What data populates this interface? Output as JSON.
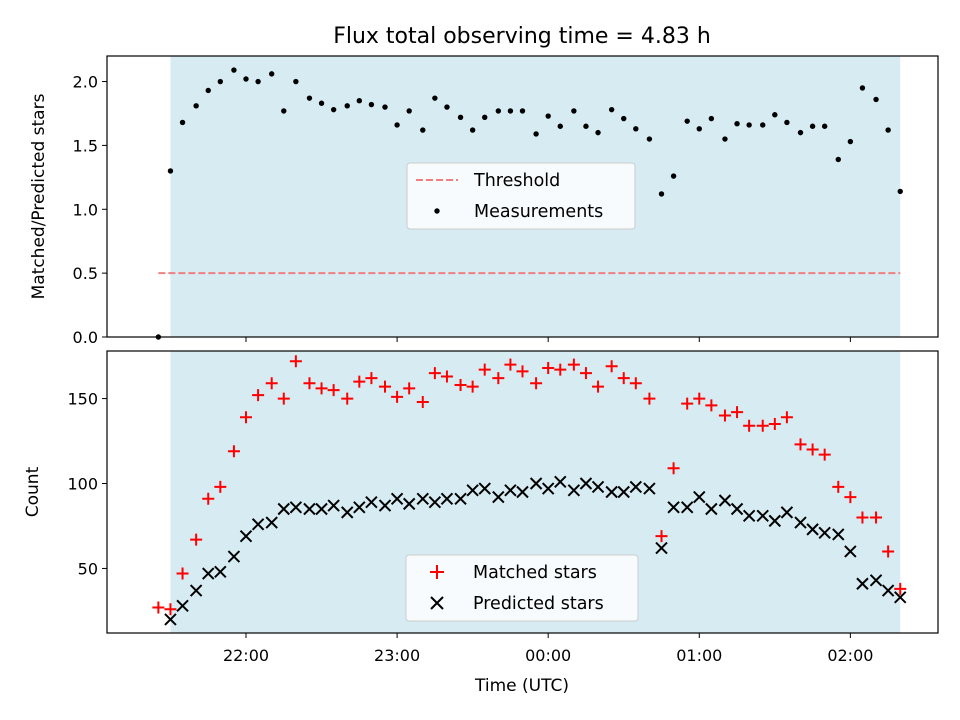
{
  "figure": {
    "title": "Flux total observing time = 4.83 h",
    "xlabel": "Time (UTC)",
    "x_tick_labels": [
      "22:00",
      "23:00",
      "00:00",
      "01:00",
      "02:00"
    ],
    "x_ticks": [
      22.0,
      23.0,
      24.0,
      25.0,
      26.0
    ],
    "xlim": [
      21.08,
      26.58
    ],
    "shaded_interval": [
      21.5,
      26.33
    ],
    "shade_color": "#add8e6"
  },
  "chart_data": [
    {
      "type": "scatter",
      "panel": "top",
      "ylabel": "Matched/Predicted stars",
      "ylim": [
        0.0,
        2.2
      ],
      "y_ticks": [
        0.0,
        0.5,
        1.0,
        1.5,
        2.0
      ],
      "y_tick_labels": [
        "0.0",
        "0.5",
        "1.0",
        "1.5",
        "2.0"
      ],
      "legend_position": "center",
      "series": [
        {
          "name": "Threshold",
          "kind": "dashed-line",
          "color": "#f08080",
          "x": [
            21.42,
            26.33
          ],
          "y": [
            0.5,
            0.5
          ]
        },
        {
          "name": "Measurements",
          "kind": "points",
          "color": "#000000",
          "x": [
            21.42,
            21.5,
            21.58,
            21.67,
            21.75,
            21.83,
            21.92,
            22.0,
            22.08,
            22.17,
            22.25,
            22.33,
            22.42,
            22.5,
            22.58,
            22.67,
            22.75,
            22.83,
            22.92,
            23.0,
            23.08,
            23.17,
            23.25,
            23.33,
            23.42,
            23.5,
            23.58,
            23.67,
            23.75,
            23.83,
            23.92,
            24.0,
            24.08,
            24.17,
            24.25,
            24.33,
            24.42,
            24.5,
            24.58,
            24.67,
            24.75,
            24.83,
            24.92,
            25.0,
            25.08,
            25.17,
            25.25,
            25.33,
            25.42,
            25.5,
            25.58,
            25.67,
            25.75,
            25.83,
            25.92,
            26.0,
            26.08,
            26.17,
            26.25,
            26.33
          ],
          "y": [
            0.0,
            1.3,
            1.68,
            1.81,
            1.93,
            2.0,
            2.09,
            2.02,
            2.0,
            2.06,
            1.77,
            2.0,
            1.87,
            1.83,
            1.78,
            1.81,
            1.85,
            1.82,
            1.8,
            1.66,
            1.77,
            1.62,
            1.87,
            1.8,
            1.72,
            1.62,
            1.72,
            1.77,
            1.77,
            1.77,
            1.59,
            1.73,
            1.65,
            1.77,
            1.65,
            1.6,
            1.78,
            1.71,
            1.63,
            1.55,
            1.12,
            1.26,
            1.69,
            1.63,
            1.71,
            1.55,
            1.67,
            1.66,
            1.66,
            1.74,
            1.68,
            1.6,
            1.65,
            1.65,
            1.39,
            1.53,
            1.95,
            1.86,
            1.62,
            1.14
          ]
        }
      ]
    },
    {
      "type": "scatter",
      "panel": "bottom",
      "ylabel": "Count",
      "ylim": [
        12,
        178
      ],
      "y_ticks": [
        50,
        100,
        150
      ],
      "y_tick_labels": [
        "50",
        "100",
        "150"
      ],
      "legend_position": "lower center",
      "series": [
        {
          "name": "Matched stars",
          "marker": "plus",
          "color": "#ff0000",
          "x": [
            21.42,
            21.5,
            21.58,
            21.67,
            21.75,
            21.83,
            21.92,
            22.0,
            22.08,
            22.17,
            22.25,
            22.33,
            22.42,
            22.5,
            22.58,
            22.67,
            22.75,
            22.83,
            22.92,
            23.0,
            23.08,
            23.17,
            23.25,
            23.33,
            23.42,
            23.5,
            23.58,
            23.67,
            23.75,
            23.83,
            23.92,
            24.0,
            24.08,
            24.17,
            24.25,
            24.33,
            24.42,
            24.5,
            24.58,
            24.67,
            24.75,
            24.83,
            24.92,
            25.0,
            25.08,
            25.17,
            25.25,
            25.33,
            25.42,
            25.5,
            25.58,
            25.67,
            25.75,
            25.83,
            25.92,
            26.0,
            26.08,
            26.17,
            26.25,
            26.33
          ],
          "y": [
            27,
            26,
            47,
            67,
            91,
            98,
            119,
            139,
            152,
            159,
            150,
            172,
            159,
            156,
            155,
            150,
            160,
            162,
            157,
            151,
            156,
            148,
            165,
            163,
            158,
            157,
            167,
            162,
            170,
            166,
            159,
            168,
            167,
            170,
            165,
            157,
            169,
            162,
            159,
            150,
            69,
            109,
            147,
            150,
            146,
            140,
            142,
            134,
            134,
            135,
            139,
            123,
            120,
            117,
            98,
            92,
            80,
            80,
            60,
            38
          ]
        },
        {
          "name": "Predicted stars",
          "marker": "x",
          "color": "#000000",
          "x": [
            21.5,
            21.58,
            21.67,
            21.75,
            21.83,
            21.92,
            22.0,
            22.08,
            22.17,
            22.25,
            22.33,
            22.42,
            22.5,
            22.58,
            22.67,
            22.75,
            22.83,
            22.92,
            23.0,
            23.08,
            23.17,
            23.25,
            23.33,
            23.42,
            23.5,
            23.58,
            23.67,
            23.75,
            23.83,
            23.92,
            24.0,
            24.08,
            24.17,
            24.25,
            24.33,
            24.42,
            24.5,
            24.58,
            24.67,
            24.75,
            24.83,
            24.92,
            25.0,
            25.08,
            25.17,
            25.25,
            25.33,
            25.42,
            25.5,
            25.58,
            25.67,
            25.75,
            25.83,
            25.92,
            26.0,
            26.08,
            26.17,
            26.25,
            26.33
          ],
          "y": [
            20,
            28,
            37,
            47,
            48,
            57,
            69,
            76,
            77,
            85,
            86,
            85,
            85,
            87,
            83,
            86,
            89,
            87,
            91,
            88,
            91,
            89,
            91,
            91,
            96,
            97,
            92,
            96,
            95,
            100,
            97,
            101,
            96,
            100,
            98,
            95,
            95,
            98,
            97,
            62,
            86,
            86,
            92,
            85,
            90,
            85,
            81,
            81,
            78,
            83,
            77,
            73,
            71,
            70,
            60,
            41,
            43,
            37,
            33
          ]
        }
      ]
    }
  ]
}
